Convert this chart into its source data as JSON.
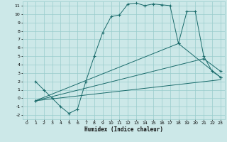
{
  "xlabel": "Humidex (Indice chaleur)",
  "bg_color": "#cce8e8",
  "grid_color": "#99cccc",
  "line_color": "#1a6b6b",
  "xlim": [
    -0.5,
    23.5
  ],
  "ylim": [
    -2.5,
    11.5
  ],
  "xticks": [
    0,
    1,
    2,
    3,
    4,
    5,
    6,
    7,
    8,
    9,
    10,
    11,
    12,
    13,
    14,
    15,
    16,
    17,
    18,
    19,
    20,
    21,
    22,
    23
  ],
  "yticks": [
    -2,
    -1,
    0,
    1,
    2,
    3,
    4,
    5,
    6,
    7,
    8,
    9,
    10,
    11
  ],
  "line1_x": [
    1,
    2,
    3,
    4,
    5,
    6,
    7,
    8,
    9,
    10,
    11,
    12,
    13,
    14,
    15,
    16,
    17,
    18,
    19,
    20,
    21,
    22,
    23
  ],
  "line1_y": [
    2.0,
    1.0,
    0.0,
    -1.0,
    -1.8,
    -1.3,
    2.0,
    5.0,
    7.8,
    9.7,
    9.9,
    11.2,
    11.3,
    11.0,
    11.2,
    11.1,
    11.0,
    6.5,
    10.3,
    10.3,
    5.0,
    3.2,
    2.5
  ],
  "line2_x": [
    1,
    23
  ],
  "line2_y": [
    -0.3,
    2.2
  ],
  "line3_x": [
    1,
    21,
    23
  ],
  "line3_y": [
    -0.3,
    4.7,
    3.2
  ],
  "line4_x": [
    1,
    18,
    23
  ],
  "line4_y": [
    -0.3,
    6.5,
    2.5
  ]
}
